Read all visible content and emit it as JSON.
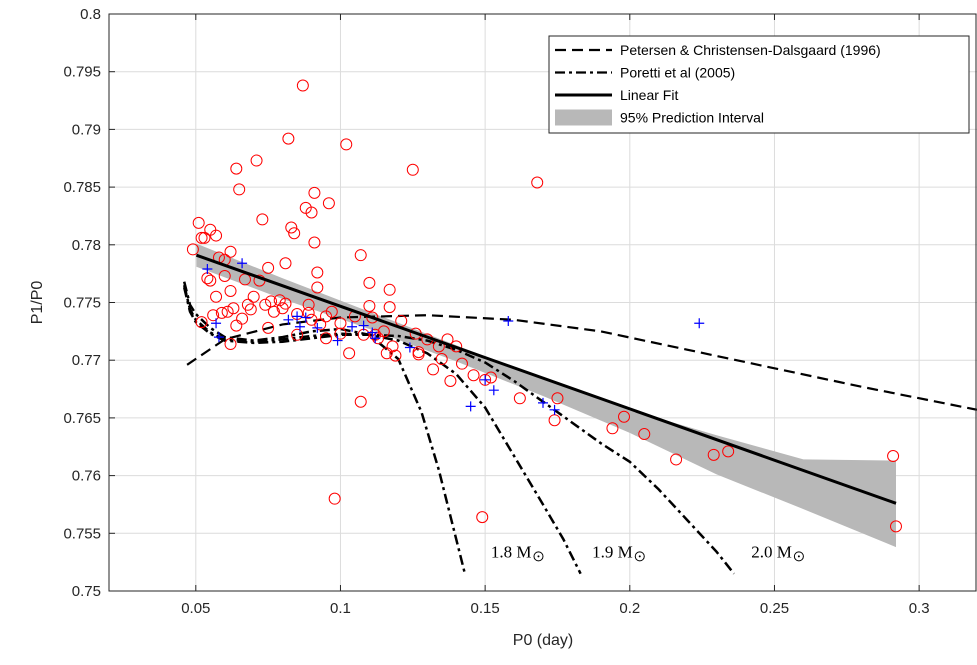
{
  "chart_data": {
    "type": "scatter",
    "xlabel": "P0 (day)",
    "ylabel": "P1/P0",
    "xlim": [
      0.02,
      0.32
    ],
    "ylim": [
      0.75,
      0.8
    ],
    "x_ticks": [
      "0.05",
      "0.1",
      "0.15",
      "0.2",
      "0.25",
      "0.3"
    ],
    "y_ticks": [
      "0.75",
      "0.755",
      "0.76",
      "0.765",
      "0.77",
      "0.775",
      "0.78",
      "0.785",
      "0.79",
      "0.795",
      "0.8"
    ],
    "grid": true,
    "legend_position": "top-right",
    "legend": [
      {
        "label": "Petersen & Christensen-Dalsgaard (1996)",
        "style": "dashed"
      },
      {
        "label": "Poretti et al (2005)",
        "style": "dash-dot"
      },
      {
        "label": "Linear Fit",
        "style": "solid"
      },
      {
        "label": "95% Prediction Interval",
        "style": "band"
      }
    ],
    "mass_labels": [
      {
        "text": "1.8 M",
        "x": 0.159,
        "y": 0.7515
      },
      {
        "text": "1.9 M",
        "x": 0.194,
        "y": 0.7515
      },
      {
        "text": "2.0 M",
        "x": 0.249,
        "y": 0.7515
      }
    ],
    "colors": {
      "circles": "#ff0000",
      "plus": "#0000ff",
      "band": "#b8b8b8",
      "lines": "#000000"
    },
    "linear_fit": {
      "x": [
        0.0502,
        0.292
      ],
      "y": [
        0.7791,
        0.7576
      ]
    },
    "prediction_band": {
      "x": [
        0.0502,
        0.08,
        0.11,
        0.14,
        0.17,
        0.2,
        0.23,
        0.26,
        0.292
      ],
      "upper": [
        0.7801,
        0.7771,
        0.7742,
        0.7713,
        0.7684,
        0.7657,
        0.7635,
        0.7614,
        0.7613
      ],
      "lower": [
        0.7781,
        0.7753,
        0.7727,
        0.7699,
        0.7669,
        0.7637,
        0.7601,
        0.7571,
        0.7538
      ]
    },
    "petersen_curve": {
      "x": [
        0.047,
        0.06,
        0.08,
        0.1,
        0.13,
        0.16,
        0.19,
        0.22,
        0.25,
        0.28,
        0.32
      ],
      "y": [
        0.7696,
        0.7718,
        0.7731,
        0.7737,
        0.7739,
        0.7735,
        0.7725,
        0.7709,
        0.7693,
        0.7677,
        0.7657
      ]
    },
    "poretti_curves": [
      {
        "name": "1.8 M",
        "x": [
          0.046,
          0.048,
          0.05,
          0.055,
          0.06,
          0.07,
          0.08,
          0.09,
          0.1,
          0.11,
          0.12,
          0.128,
          0.134,
          0.138,
          0.141,
          0.143
        ],
        "y": [
          0.7768,
          0.7748,
          0.774,
          0.7728,
          0.772,
          0.7717,
          0.772,
          0.7725,
          0.7727,
          0.7722,
          0.7701,
          0.7655,
          0.7605,
          0.7565,
          0.7535,
          0.7515
        ]
      },
      {
        "name": "1.9 M",
        "x": [
          0.046,
          0.048,
          0.05,
          0.055,
          0.06,
          0.07,
          0.08,
          0.09,
          0.1,
          0.11,
          0.12,
          0.13,
          0.14,
          0.15,
          0.16,
          0.17,
          0.177,
          0.183
        ],
        "y": [
          0.7765,
          0.7744,
          0.7735,
          0.7724,
          0.7718,
          0.7716,
          0.7718,
          0.7721,
          0.7723,
          0.7722,
          0.7717,
          0.7706,
          0.7688,
          0.7659,
          0.7617,
          0.7575,
          0.7545,
          0.7515
        ]
      },
      {
        "name": "2.0 M",
        "x": [
          0.046,
          0.048,
          0.05,
          0.055,
          0.06,
          0.07,
          0.08,
          0.09,
          0.1,
          0.11,
          0.12,
          0.13,
          0.14,
          0.15,
          0.16,
          0.17,
          0.18,
          0.19,
          0.2,
          0.21,
          0.22,
          0.23,
          0.236
        ],
        "y": [
          0.7763,
          0.7742,
          0.7733,
          0.7723,
          0.7717,
          0.7715,
          0.7716,
          0.7719,
          0.7722,
          0.7722,
          0.7721,
          0.7717,
          0.7709,
          0.7698,
          0.7682,
          0.7664,
          0.7646,
          0.7628,
          0.7612,
          0.7588,
          0.7561,
          0.7534,
          0.7515
        ]
      }
    ],
    "circles": [
      [
        0.049,
        0.7796
      ],
      [
        0.051,
        0.7819
      ],
      [
        0.052,
        0.7806
      ],
      [
        0.052,
        0.7733
      ],
      [
        0.053,
        0.7806
      ],
      [
        0.054,
        0.7771
      ],
      [
        0.055,
        0.7813
      ],
      [
        0.055,
        0.7769
      ],
      [
        0.056,
        0.7739
      ],
      [
        0.057,
        0.7808
      ],
      [
        0.057,
        0.7755
      ],
      [
        0.058,
        0.7789
      ],
      [
        0.059,
        0.7741
      ],
      [
        0.06,
        0.7773
      ],
      [
        0.06,
        0.7787
      ],
      [
        0.061,
        0.7742
      ],
      [
        0.062,
        0.7794
      ],
      [
        0.062,
        0.776
      ],
      [
        0.062,
        0.7714
      ],
      [
        0.063,
        0.7745
      ],
      [
        0.064,
        0.773
      ],
      [
        0.064,
        0.7866
      ],
      [
        0.065,
        0.7848
      ],
      [
        0.066,
        0.7736
      ],
      [
        0.067,
        0.777
      ],
      [
        0.068,
        0.7748
      ],
      [
        0.069,
        0.7744
      ],
      [
        0.07,
        0.7755
      ],
      [
        0.071,
        0.7873
      ],
      [
        0.072,
        0.7769
      ],
      [
        0.073,
        0.7822
      ],
      [
        0.074,
        0.7748
      ],
      [
        0.075,
        0.778
      ],
      [
        0.075,
        0.7728
      ],
      [
        0.076,
        0.7751
      ],
      [
        0.077,
        0.7742
      ],
      [
        0.079,
        0.7752
      ],
      [
        0.08,
        0.7745
      ],
      [
        0.081,
        0.7749
      ],
      [
        0.081,
        0.7784
      ],
      [
        0.082,
        0.7892
      ],
      [
        0.083,
        0.7815
      ],
      [
        0.084,
        0.781
      ],
      [
        0.085,
        0.7722
      ],
      [
        0.085,
        0.774
      ],
      [
        0.087,
        0.7938
      ],
      [
        0.088,
        0.7832
      ],
      [
        0.089,
        0.7748
      ],
      [
        0.089,
        0.7741
      ],
      [
        0.09,
        0.7735
      ],
      [
        0.09,
        0.7828
      ],
      [
        0.091,
        0.7845
      ],
      [
        0.091,
        0.7802
      ],
      [
        0.092,
        0.7776
      ],
      [
        0.092,
        0.7763
      ],
      [
        0.093,
        0.7731
      ],
      [
        0.095,
        0.7719
      ],
      [
        0.095,
        0.7738
      ],
      [
        0.096,
        0.7836
      ],
      [
        0.097,
        0.7742
      ],
      [
        0.098,
        0.758
      ],
      [
        0.1,
        0.7732
      ],
      [
        0.1,
        0.7723
      ],
      [
        0.102,
        0.7887
      ],
      [
        0.103,
        0.7706
      ],
      [
        0.105,
        0.7738
      ],
      [
        0.107,
        0.7664
      ],
      [
        0.107,
        0.7791
      ],
      [
        0.108,
        0.7722
      ],
      [
        0.11,
        0.7767
      ],
      [
        0.11,
        0.7747
      ],
      [
        0.111,
        0.7737
      ],
      [
        0.112,
        0.7722
      ],
      [
        0.113,
        0.7719
      ],
      [
        0.115,
        0.7725
      ],
      [
        0.116,
        0.7706
      ],
      [
        0.117,
        0.7761
      ],
      [
        0.117,
        0.7746
      ],
      [
        0.118,
        0.7712
      ],
      [
        0.119,
        0.7704
      ],
      [
        0.121,
        0.7734
      ],
      [
        0.125,
        0.7865
      ],
      [
        0.126,
        0.7723
      ],
      [
        0.127,
        0.7705
      ],
      [
        0.127,
        0.7707
      ],
      [
        0.13,
        0.7718
      ],
      [
        0.132,
        0.7692
      ],
      [
        0.134,
        0.7712
      ],
      [
        0.135,
        0.7701
      ],
      [
        0.137,
        0.7718
      ],
      [
        0.138,
        0.7682
      ],
      [
        0.14,
        0.7712
      ],
      [
        0.142,
        0.7697
      ],
      [
        0.146,
        0.7687
      ],
      [
        0.149,
        0.7564
      ],
      [
        0.15,
        0.7683
      ],
      [
        0.152,
        0.7685
      ],
      [
        0.162,
        0.7667
      ],
      [
        0.168,
        0.7854
      ],
      [
        0.174,
        0.7648
      ],
      [
        0.175,
        0.7667
      ],
      [
        0.194,
        0.7641
      ],
      [
        0.198,
        0.7651
      ],
      [
        0.205,
        0.7636
      ],
      [
        0.216,
        0.7614
      ],
      [
        0.229,
        0.7618
      ],
      [
        0.234,
        0.7621
      ],
      [
        0.291,
        0.7617
      ],
      [
        0.292,
        0.7556
      ]
    ],
    "plus_markers": [
      [
        0.054,
        0.7779
      ],
      [
        0.057,
        0.7732
      ],
      [
        0.058,
        0.772
      ],
      [
        0.066,
        0.7784
      ],
      [
        0.082,
        0.7735
      ],
      [
        0.085,
        0.7738
      ],
      [
        0.086,
        0.7729
      ],
      [
        0.088,
        0.7737
      ],
      [
        0.092,
        0.7728
      ],
      [
        0.099,
        0.7717
      ],
      [
        0.104,
        0.7729
      ],
      [
        0.108,
        0.773
      ],
      [
        0.111,
        0.7724
      ],
      [
        0.112,
        0.7719
      ],
      [
        0.124,
        0.7711
      ],
      [
        0.145,
        0.766
      ],
      [
        0.15,
        0.7683
      ],
      [
        0.153,
        0.7674
      ],
      [
        0.158,
        0.7734
      ],
      [
        0.17,
        0.7663
      ],
      [
        0.174,
        0.7657
      ],
      [
        0.224,
        0.7732
      ]
    ]
  }
}
